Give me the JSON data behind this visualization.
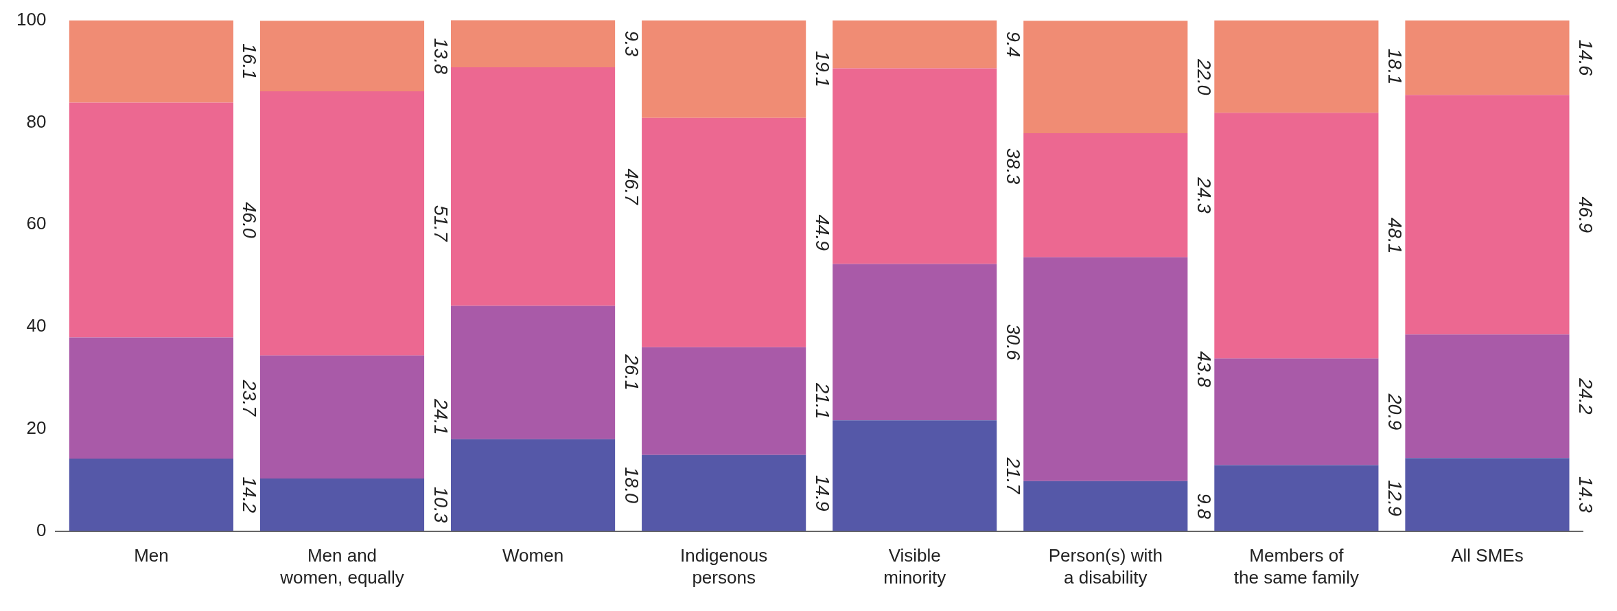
{
  "chart_data": {
    "type": "bar",
    "stacked": true,
    "legend": false,
    "grid": false,
    "categories": [
      "Men",
      "Men and\nwomen, equally",
      "Women",
      "Indigenous\npersons",
      "Visible\nminority",
      "Person(s) with\na disability",
      "Members of\nthe same family",
      "All SMEs"
    ],
    "ylim": [
      0,
      100
    ],
    "yticks": [
      0,
      20,
      40,
      60,
      80,
      100
    ],
    "series": [
      {
        "color": "#5558a8",
        "values": [
          14.2,
          10.3,
          18.0,
          14.9,
          21.7,
          9.8,
          12.9,
          14.3
        ],
        "value_labels": [
          "14.2",
          "10.3",
          "18.0",
          "14.9",
          "21.7",
          "9.8",
          "12.9",
          "14.3"
        ]
      },
      {
        "color": "#a95aa8",
        "values": [
          23.7,
          24.1,
          26.1,
          21.1,
          30.6,
          43.8,
          20.9,
          24.2
        ],
        "value_labels": [
          "23.7",
          "24.1",
          "26.1",
          "21.1",
          "30.6",
          "43.8",
          "20.9",
          "24.2"
        ]
      },
      {
        "color": "#ec6891",
        "values": [
          46.0,
          51.7,
          46.7,
          44.9,
          38.3,
          24.3,
          48.1,
          46.9
        ],
        "value_labels": [
          "46.0",
          "51.7",
          "46.7",
          "44.9",
          "38.3",
          "24.3",
          "48.1",
          "46.9"
        ]
      },
      {
        "color": "#f08c74",
        "values": [
          16.1,
          13.8,
          9.3,
          19.1,
          9.4,
          22.0,
          18.1,
          14.6
        ],
        "value_labels": [
          "16.1",
          "13.8",
          "9.3",
          "19.1",
          "9.4",
          "22.0",
          "18.1",
          "14.6"
        ]
      }
    ]
  }
}
